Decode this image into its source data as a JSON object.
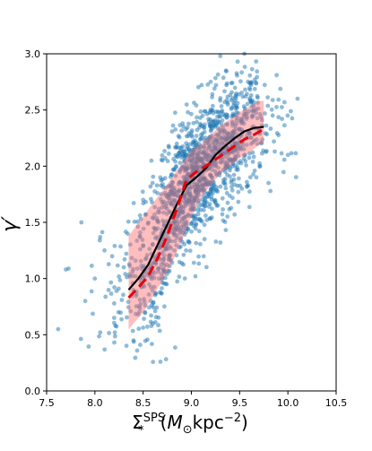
{
  "chart_data": {
    "type": "scatter",
    "title": "",
    "xlabel": "Σ*SPS(M⊙kpc−2)",
    "ylabel": "γ′",
    "xlim": [
      7.5,
      10.5
    ],
    "ylim": [
      0.0,
      3.0
    ],
    "x_ticks": [
      "7.5",
      "8.0",
      "8.5",
      "9.0",
      "9.5",
      "10.0",
      "10.5"
    ],
    "y_ticks": [
      "0.0",
      "0.5",
      "1.0",
      "1.5",
      "2.0",
      "2.5",
      "3.0"
    ],
    "grid": false,
    "legend": "none",
    "colors": {
      "scatter": "#1f77b4",
      "band": "#ff6f6f",
      "median_line": "#000000",
      "model_line": "#e8000b"
    },
    "scatter_description": "approximately 1500 galaxies spanning x from 7.6 to 10.1 and y from 0.25 to 3.0, following a rising trend",
    "scatter_points_sample": [
      {
        "x": 7.62,
        "y": 0.55
      },
      {
        "x": 7.7,
        "y": 1.08
      },
      {
        "x": 7.86,
        "y": 1.5
      },
      {
        "x": 7.9,
        "y": 0.8
      },
      {
        "x": 8.0,
        "y": 1.0
      },
      {
        "x": 8.1,
        "y": 1.25
      },
      {
        "x": 8.2,
        "y": 0.65
      },
      {
        "x": 8.3,
        "y": 1.1
      },
      {
        "x": 8.4,
        "y": 0.45
      },
      {
        "x": 8.5,
        "y": 1.7
      },
      {
        "x": 8.6,
        "y": 0.6
      },
      {
        "x": 8.68,
        "y": 0.26
      },
      {
        "x": 8.7,
        "y": 2.05
      },
      {
        "x": 8.85,
        "y": 2.2
      },
      {
        "x": 9.0,
        "y": 2.3
      },
      {
        "x": 9.2,
        "y": 2.75
      },
      {
        "x": 9.3,
        "y": 2.98
      },
      {
        "x": 9.55,
        "y": 3.0
      },
      {
        "x": 9.8,
        "y": 1.85
      },
      {
        "x": 10.0,
        "y": 2.1
      },
      {
        "x": 10.1,
        "y": 2.6
      }
    ],
    "series": [
      {
        "kind": "band",
        "x": [
          8.35,
          8.5,
          8.6,
          8.7,
          8.8,
          8.9,
          9.0,
          9.1,
          9.2,
          9.3,
          9.4,
          9.5,
          9.6,
          9.7,
          9.75
        ],
        "y_upper": [
          1.38,
          1.55,
          1.67,
          1.78,
          1.9,
          2.02,
          2.14,
          2.2,
          2.28,
          2.36,
          2.42,
          2.48,
          2.53,
          2.58,
          2.58
        ],
        "y_lower": [
          0.55,
          0.7,
          0.84,
          0.98,
          1.14,
          1.34,
          1.55,
          1.72,
          1.83,
          1.93,
          2.0,
          2.07,
          2.12,
          2.19,
          2.2
        ]
      },
      {
        "kind": "median_line",
        "style": "solid",
        "x": [
          8.35,
          8.45,
          8.55,
          8.65,
          8.75,
          8.85,
          8.95,
          9.05,
          9.15,
          9.25,
          9.35,
          9.45,
          9.55,
          9.65,
          9.75
        ],
        "y": [
          0.9,
          1.0,
          1.12,
          1.3,
          1.48,
          1.66,
          1.83,
          1.9,
          1.98,
          2.1,
          2.18,
          2.25,
          2.31,
          2.34,
          2.35
        ]
      },
      {
        "kind": "model_line",
        "style": "dashed",
        "x": [
          8.35,
          8.45,
          8.55,
          8.65,
          8.75,
          8.85,
          8.95,
          9.05,
          9.15,
          9.25,
          9.35,
          9.45,
          9.55,
          9.65,
          9.75
        ],
        "y": [
          0.83,
          0.92,
          1.02,
          1.18,
          1.38,
          1.62,
          1.88,
          1.95,
          2.0,
          2.06,
          2.12,
          2.18,
          2.24,
          2.28,
          2.33
        ]
      }
    ]
  }
}
